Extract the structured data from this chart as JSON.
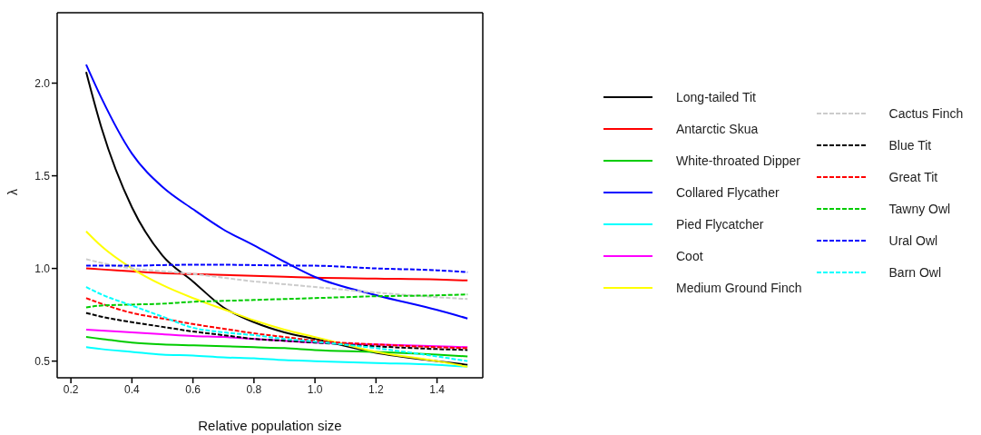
{
  "chart_data": {
    "type": "line",
    "xlabel": "Relative population size",
    "ylabel": "λ",
    "x": [
      0.25,
      0.3,
      0.4,
      0.5,
      0.6,
      0.7,
      0.8,
      0.9,
      1.0,
      1.2,
      1.4,
      1.5
    ],
    "xlim": [
      0.155,
      1.55
    ],
    "ylim": [
      0.41,
      2.38
    ],
    "xticks": [
      0.2,
      0.4,
      0.6,
      0.8,
      {
        "value": 1,
        "label": "1.0"
      },
      1.2,
      1.4
    ],
    "yticks": [
      0.5,
      {
        "value": 1,
        "label": "1.0"
      },
      1.5,
      {
        "value": 2,
        "label": "2.0"
      }
    ],
    "legend": "right",
    "marker": "none",
    "series": [
      {
        "name": "Long-tailed Tit",
        "color": "#000000",
        "line_style": "solid",
        "values": [
          2.06,
          1.76,
          1.33,
          1.07,
          0.93,
          0.79,
          0.71,
          0.655,
          0.62,
          0.545,
          0.5,
          0.48
        ]
      },
      {
        "name": "Antarctic Skua",
        "color": "#ff0000",
        "line_style": "solid",
        "values": [
          1.0,
          0.995,
          0.985,
          0.975,
          0.97,
          0.965,
          0.96,
          0.955,
          0.95,
          0.945,
          0.94,
          0.935
        ]
      },
      {
        "name": "White-throated Dipper",
        "color": "#00cc00",
        "line_style": "solid",
        "values": [
          0.63,
          0.62,
          0.6,
          0.59,
          0.585,
          0.58,
          0.575,
          0.57,
          0.56,
          0.55,
          0.535,
          0.525
        ]
      },
      {
        "name": "Collared Flycather",
        "color": "#0000ff",
        "line_style": "solid",
        "values": [
          2.1,
          1.92,
          1.62,
          1.44,
          1.32,
          1.21,
          1.125,
          1.036,
          0.954,
          0.856,
          0.776,
          0.73
        ]
      },
      {
        "name": "Pied Flycatcher",
        "color": "#00ffff",
        "line_style": "solid",
        "values": [
          0.575,
          0.565,
          0.55,
          0.535,
          0.53,
          0.52,
          0.515,
          0.505,
          0.5,
          0.49,
          0.48,
          0.47
        ]
      },
      {
        "name": "Coot",
        "color": "#ff00ff",
        "line_style": "solid",
        "values": [
          0.67,
          0.665,
          0.655,
          0.645,
          0.635,
          0.63,
          0.62,
          0.61,
          0.6,
          0.59,
          0.58,
          0.575
        ]
      },
      {
        "name": "Medium Ground Finch",
        "color": "#ffff00",
        "line_style": "solid",
        "values": [
          1.2,
          1.12,
          1.0,
          0.91,
          0.84,
          0.78,
          0.72,
          0.67,
          0.63,
          0.55,
          0.5,
          0.47
        ]
      },
      {
        "name": "Cactus Finch",
        "color": "#cccccc",
        "line_style": "dashed",
        "values": [
          1.05,
          1.03,
          1.0,
          0.985,
          0.97,
          0.95,
          0.93,
          0.915,
          0.9,
          0.87,
          0.845,
          0.835
        ]
      },
      {
        "name": "Blue Tit",
        "color": "#000000",
        "line_style": "dashed",
        "values": [
          0.76,
          0.74,
          0.71,
          0.685,
          0.66,
          0.64,
          0.62,
          0.61,
          0.6,
          0.58,
          0.565,
          0.56
        ]
      },
      {
        "name": "Great Tit",
        "color": "#ff0000",
        "line_style": "dashed",
        "values": [
          0.84,
          0.81,
          0.76,
          0.73,
          0.7,
          0.675,
          0.65,
          0.63,
          0.61,
          0.59,
          0.575,
          0.57
        ]
      },
      {
        "name": "Tawny Owl",
        "color": "#00cc00",
        "line_style": "dashed",
        "values": [
          0.79,
          0.8,
          0.805,
          0.81,
          0.82,
          0.825,
          0.83,
          0.835,
          0.84,
          0.85,
          0.855,
          0.86
        ]
      },
      {
        "name": "Ural Owl",
        "color": "#0000ff",
        "line_style": "dashed",
        "values": [
          1.015,
          1.015,
          1.015,
          1.018,
          1.02,
          1.02,
          1.018,
          1.016,
          1.015,
          1.0,
          0.99,
          0.98
        ]
      },
      {
        "name": "Barn Owl",
        "color": "#00ffff",
        "line_style": "dashed",
        "values": [
          0.9,
          0.86,
          0.8,
          0.74,
          0.68,
          0.655,
          0.64,
          0.62,
          0.605,
          0.57,
          0.525,
          0.5
        ]
      }
    ]
  }
}
